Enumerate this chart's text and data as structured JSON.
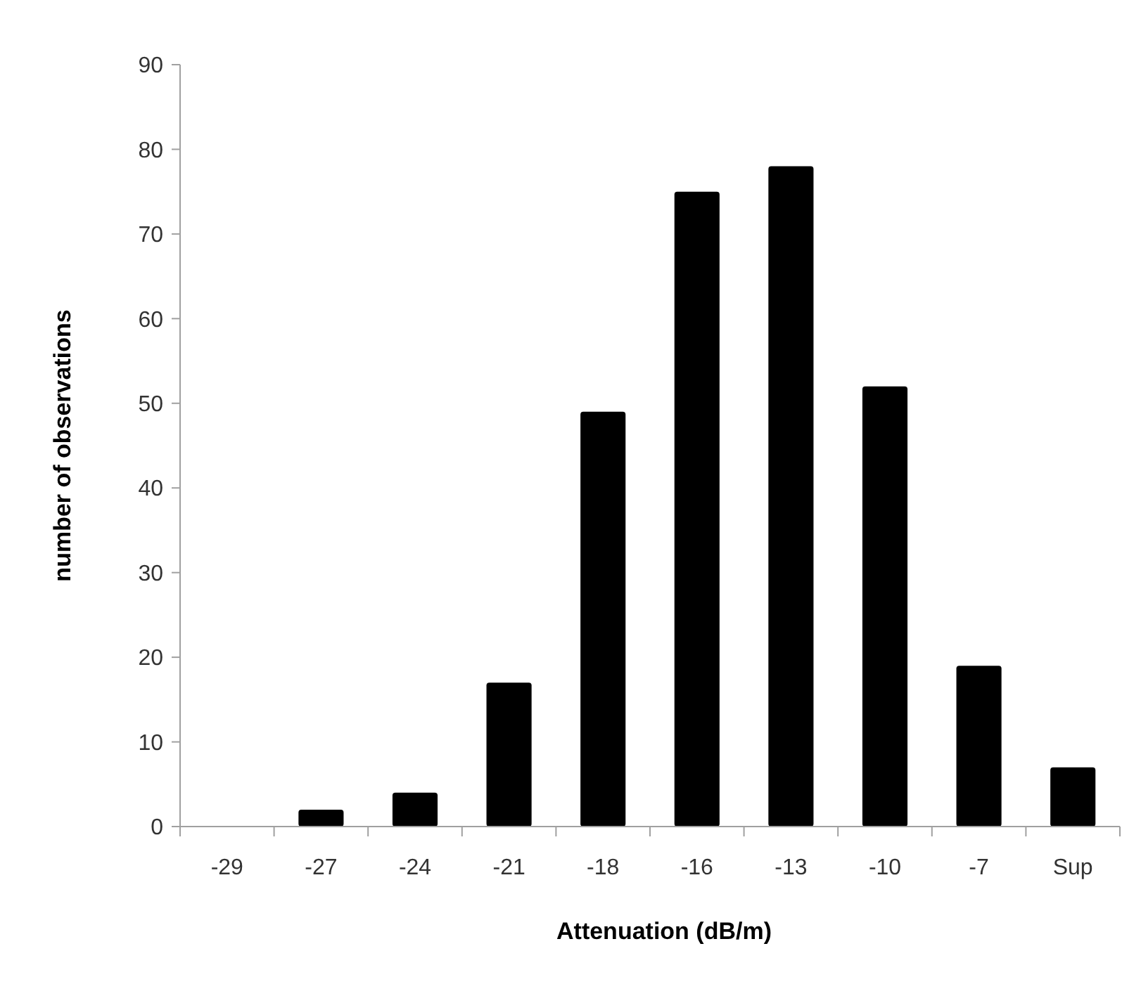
{
  "chart_data": {
    "type": "bar",
    "xlabel": "Attenuation (dB/m)",
    "ylabel": "number of observations",
    "categories": [
      "-29",
      "-27",
      "-24",
      "-21",
      "-18",
      "-16",
      "-13",
      "-10",
      "-7",
      "Sup"
    ],
    "values": [
      0,
      2,
      4,
      17,
      49,
      75,
      78,
      52,
      19,
      7
    ],
    "color": "#000000",
    "ylim": [
      0,
      90
    ],
    "yticks": [
      0,
      10,
      20,
      30,
      40,
      50,
      60,
      70,
      80,
      90
    ],
    "grid": false
  }
}
